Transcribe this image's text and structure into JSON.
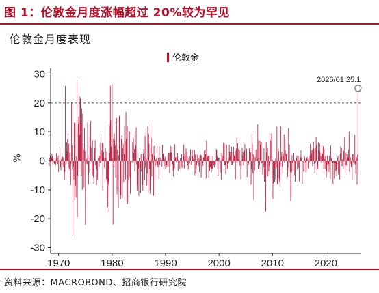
{
  "figure": {
    "title": "图 1：伦敦金月度涨幅超过 20%较为罕见",
    "source": "资料来源：MACROBOND、招商银行研究院"
  },
  "colors": {
    "accent": "#b8102a",
    "bars": "#c0284a",
    "axis": "#222222",
    "reference_line": "#555555",
    "marker": "#888888"
  },
  "chart_data": {
    "type": "bar",
    "title": "伦敦金月度表现",
    "legend": {
      "entries": [
        "伦敦金"
      ],
      "position": "top-center"
    },
    "xlabel": "",
    "ylabel": "%",
    "xlim": [
      1968.5,
      2026.6
    ],
    "ylim": [
      -32,
      32
    ],
    "xticks": [
      "1970",
      "1980",
      "1990",
      "2000",
      "2010",
      "2020"
    ],
    "yticks": [
      "30",
      "20",
      "10",
      "0",
      "-10",
      "-20",
      "-30"
    ],
    "grid": false,
    "reference_line": {
      "y": 20,
      "style": "dashed"
    },
    "annotation": {
      "x": "2026/01",
      "y": 25.1,
      "label": "2026/01  25.1"
    },
    "series": [
      {
        "name": "伦敦金",
        "x_start": "1968/04",
        "frequency": "monthly",
        "description": "monthly percent change, London gold price",
        "highlights": [
          {
            "x": "1973/06",
            "value": 28.0
          },
          {
            "x": "1974/02",
            "value": 21.5
          },
          {
            "x": "1979/09",
            "value": 26.0
          },
          {
            "x": "1980/01",
            "value": 26.5
          },
          {
            "x": "1980/03",
            "value": -22.0
          },
          {
            "x": "1982/08",
            "value": 17.0
          },
          {
            "x": "1986/09",
            "value": 12.0
          },
          {
            "x": "2008/10",
            "value": -17.5
          },
          {
            "x": "2011/08",
            "value": 12.0
          },
          {
            "x": "2013/06",
            "value": -14.0
          },
          {
            "x": "2026/01",
            "value": 25.1
          }
        ]
      }
    ]
  }
}
